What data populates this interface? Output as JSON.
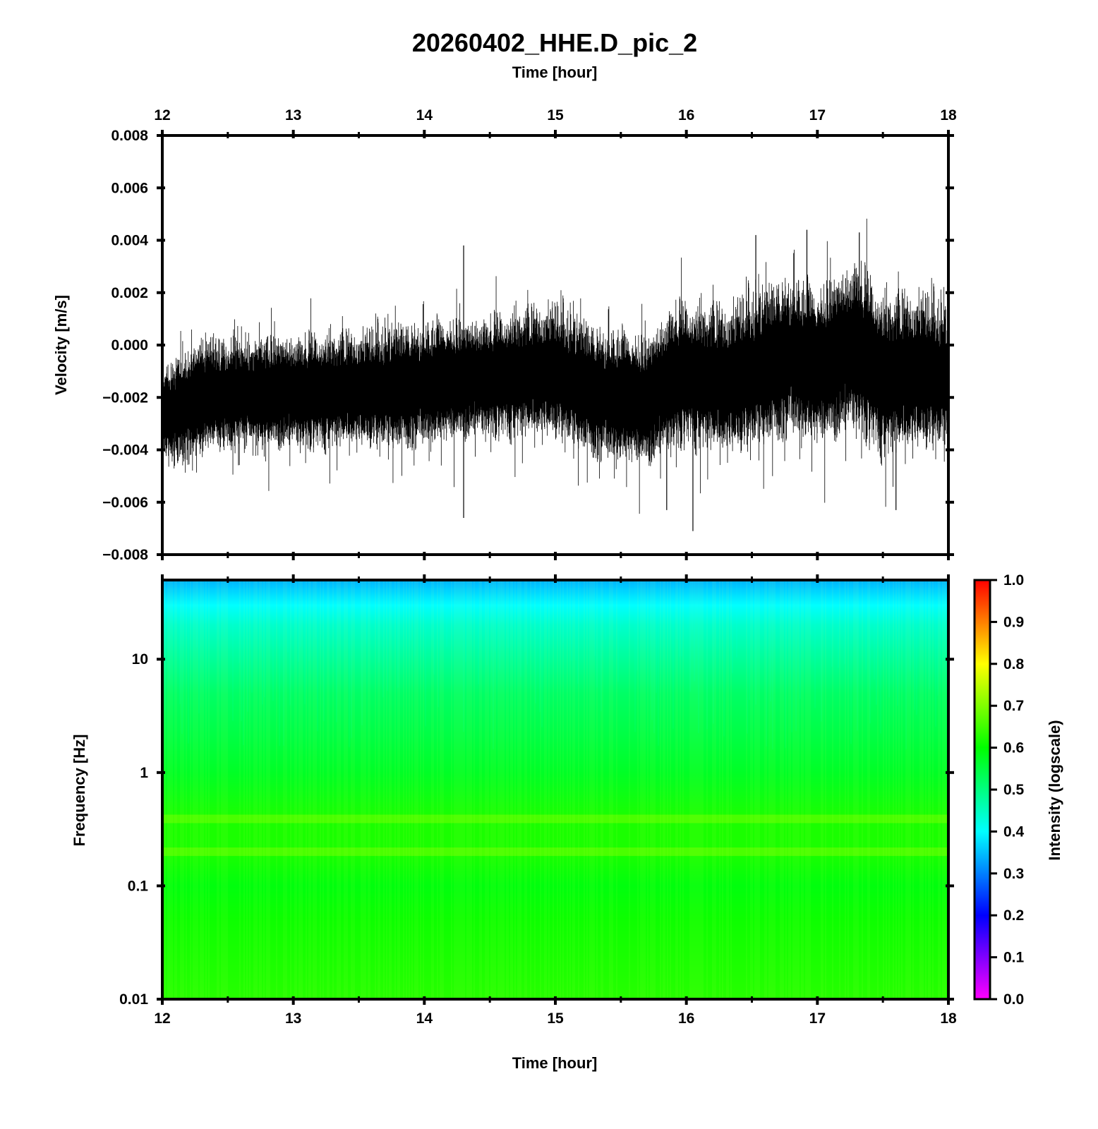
{
  "title": "20260402_HHE.D_pic_2",
  "chart_data": [
    {
      "type": "line",
      "x_label_top": "Time [hour]",
      "ylabel": "Velocity [m/s]",
      "xlim": [
        12,
        18
      ],
      "ylim": [
        -0.008,
        0.008
      ],
      "x_ticks": [
        12,
        13,
        14,
        15,
        16,
        17,
        18
      ],
      "y_ticks": [
        "0.008",
        "0.006",
        "0.004",
        "0.002",
        "0.000",
        "−0.002",
        "−0.004",
        "−0.006",
        "−0.008"
      ],
      "line_color": "#000000",
      "trend": {
        "x": [
          12.0,
          12.3,
          12.5,
          13.0,
          13.5,
          13.8,
          14.2,
          14.5,
          15.0,
          15.3,
          15.7,
          15.9,
          16.0,
          16.3,
          16.6,
          16.8,
          17.0,
          17.3,
          17.5,
          17.8,
          18.0
        ],
        "center": [
          -0.0028,
          -0.002,
          -0.0019,
          -0.0018,
          -0.0017,
          -0.0016,
          -0.0014,
          -0.0012,
          -0.001,
          -0.0018,
          -0.0022,
          -0.0012,
          -0.0011,
          -0.0014,
          -0.0008,
          -0.0004,
          -0.0009,
          0.0,
          -0.0012,
          -0.001,
          -0.0012
        ],
        "envelope": [
          0.0014,
          0.0018,
          0.0016,
          0.0017,
          0.0017,
          0.0019,
          0.0018,
          0.0018,
          0.002,
          0.002,
          0.0019,
          0.0022,
          0.0021,
          0.0022,
          0.0024,
          0.0024,
          0.0023,
          0.0026,
          0.0024,
          0.0023,
          0.0022
        ]
      },
      "peaks": {
        "max": [
          {
            "x": 14.3,
            "y": 0.0038
          },
          {
            "x": 16.92,
            "y": 0.0044
          },
          {
            "x": 17.32,
            "y": 0.0043
          },
          {
            "x": 16.53,
            "y": 0.0042
          }
        ],
        "min": [
          {
            "x": 14.3,
            "y": -0.0066
          },
          {
            "x": 16.05,
            "y": -0.0071
          },
          {
            "x": 15.85,
            "y": -0.0063
          },
          {
            "x": 17.6,
            "y": -0.0063
          }
        ]
      }
    },
    {
      "type": "heatmap",
      "xlabel": "Time [hour]",
      "ylabel": "Frequency [Hz]",
      "xlim": [
        12,
        18
      ],
      "ylim": [
        0.01,
        50
      ],
      "y_scale": "log",
      "x_ticks": [
        12,
        13,
        14,
        15,
        16,
        17,
        18
      ],
      "y_ticks": [
        "10",
        "1",
        "0.1",
        "0.01"
      ],
      "colorbar": {
        "label": "Intensity (logscale)",
        "range": [
          0.0,
          1.0
        ],
        "ticks": [
          "1.0",
          "0.9",
          "0.8",
          "0.7",
          "0.6",
          "0.5",
          "0.4",
          "0.3",
          "0.2",
          "0.1",
          "0.0"
        ],
        "colors": [
          "#ff00ff",
          "#8000ff",
          "#0000ff",
          "#0080ff",
          "#00ffff",
          "#00ff80",
          "#00ff00",
          "#80ff00",
          "#ffff00",
          "#ff8000",
          "#ff0000"
        ]
      },
      "intensity_profile": {
        "frequency_hz": [
          50,
          30,
          20,
          10,
          5,
          1,
          0.4,
          0.2,
          0.1,
          0.05,
          0.01
        ],
        "intensity": [
          0.34,
          0.4,
          0.44,
          0.48,
          0.52,
          0.57,
          0.62,
          0.62,
          0.59,
          0.61,
          0.63
        ]
      },
      "bands_hz": [
        0.39,
        0.2
      ]
    }
  ]
}
